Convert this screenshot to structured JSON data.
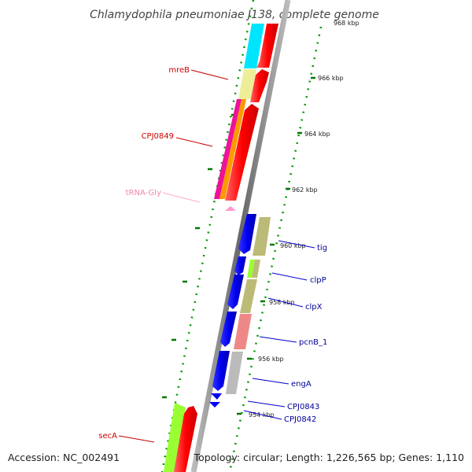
{
  "title": "Chlamydophila pneumoniae J138, complete genome",
  "accession": "Accession: NC_002491",
  "topology": "Topology: circular; Length: 1,226,565 bp; Genes: 1,110",
  "ticks": [
    "968 kbp",
    "966 kbp",
    "964 kbp",
    "962 kbp",
    "960 kbp",
    "958 kbp",
    "956 kbp",
    "954 kbp"
  ],
  "labels": {
    "mreB": "mreB",
    "cpj0849": "CPJ0849",
    "trna_gly": "tRNA-Gly",
    "tig": "tig",
    "clpP": "clpP",
    "clpX": "clpX",
    "pcnB_1": "pcnB_1",
    "engA": "engA",
    "cpj0843": "CPJ0843",
    "cpj0842": "CPJ0842",
    "secA": "secA"
  },
  "colors": {
    "forward_label": "#cc0000",
    "reverse_label": "#000099",
    "rna_label": "#ee88aa",
    "forward_gene": "#ff0000",
    "reverse_gene": "#0000ee",
    "backbone": "#888888",
    "tick_mark": "#007700"
  }
}
